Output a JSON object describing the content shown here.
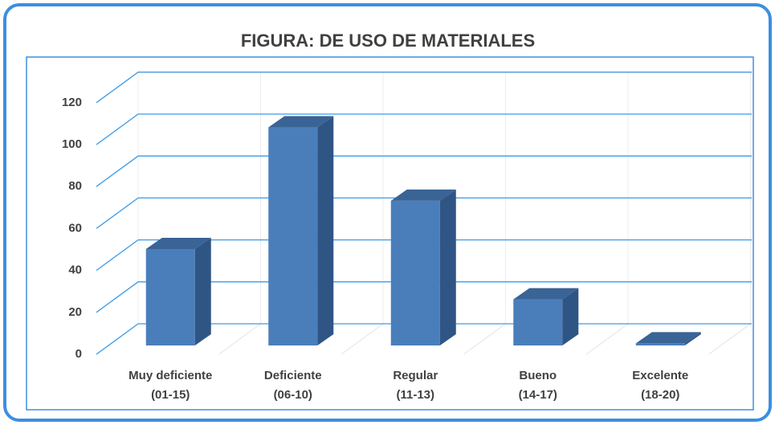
{
  "chart_data": {
    "type": "bar3d",
    "title": "FIGURA: DE USO DE MATERIALES",
    "categories": [
      "Muy deficiente\n(01-15)",
      "Deficiente\n(06-10)",
      "Regular\n(11-13)",
      "Bueno\n(14-17)",
      "Excelente\n(18-20)"
    ],
    "values": [
      46,
      104,
      69,
      22,
      1
    ],
    "color": "#4a7ebb",
    "ylim": [
      0,
      120
    ],
    "yticks": [
      0,
      20,
      40,
      60,
      80,
      100,
      120
    ],
    "grid": true
  }
}
